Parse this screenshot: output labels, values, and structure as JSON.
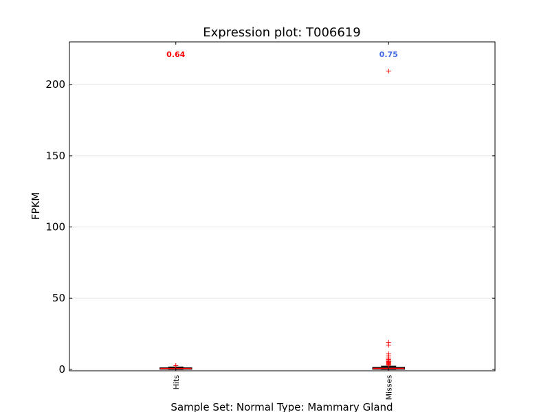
{
  "chart_data": {
    "type": "box",
    "title": "Expression plot: T006619",
    "xlabel": "Sample Set: Normal Type: Mammary Gland",
    "ylabel": "FPKM",
    "ylim": [
      -1,
      230
    ],
    "yticks": [
      0,
      50,
      100,
      150,
      200
    ],
    "ytick_labels": [
      "0",
      "50",
      "100",
      "150",
      "200"
    ],
    "grid": "horizontal",
    "categories": [
      "Hits",
      "Misses"
    ],
    "boxes": [
      {
        "category": "Hits",
        "q1": 0.2,
        "median": 0.6,
        "q3": 1.0,
        "whisker_low": 0,
        "whisker_high": 1.6,
        "outliers": [
          2.6
        ],
        "annotation": "0.64",
        "annotation_color": "#ff0000"
      },
      {
        "category": "Misses",
        "q1": 0.2,
        "median": 0.7,
        "q3": 1.3,
        "whisker_low": 0,
        "whisker_high": 2.2,
        "outliers": [
          209.5,
          19,
          17,
          11,
          9.5,
          8,
          7,
          6,
          5.5,
          5,
          4.5,
          4,
          3.5,
          3
        ],
        "annotation": "0.75",
        "annotation_color": "#4169e1"
      }
    ],
    "colors": {
      "box_edge": "#000000",
      "median": "#ff0000",
      "whisker": "#000000",
      "outlier": "#ff0000",
      "grid": "#e6e6e6"
    }
  }
}
